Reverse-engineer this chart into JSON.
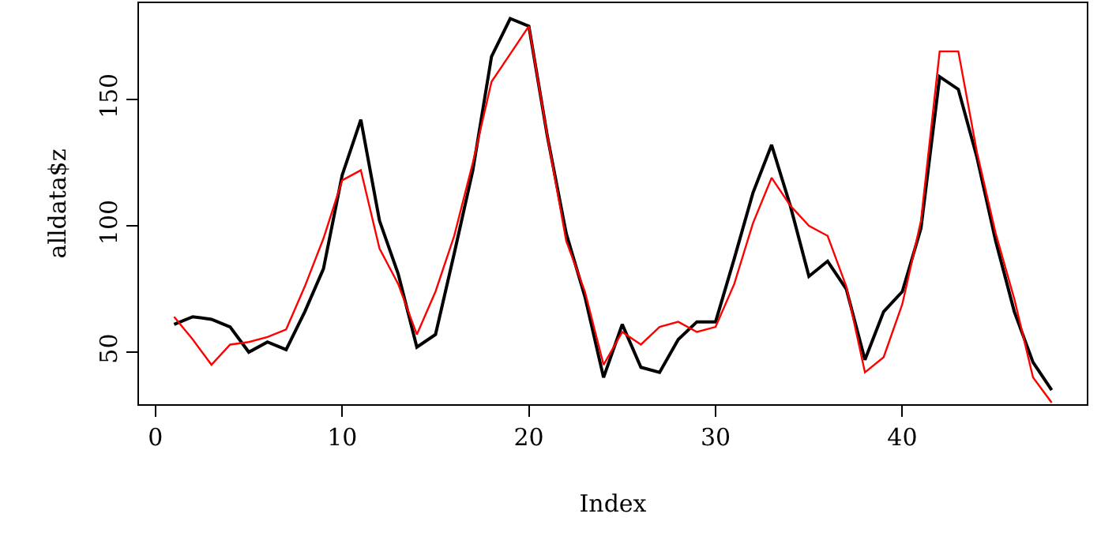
{
  "chart_data": {
    "type": "line",
    "xlabel": "Index",
    "ylabel": "alldata$z",
    "x": [
      1,
      2,
      3,
      4,
      5,
      6,
      7,
      8,
      9,
      10,
      11,
      12,
      13,
      14,
      15,
      16,
      17,
      18,
      19,
      20,
      21,
      22,
      23,
      24,
      25,
      26,
      27,
      28,
      29,
      30,
      31,
      32,
      33,
      34,
      35,
      36,
      37,
      38,
      39,
      40,
      41,
      42,
      43,
      44,
      45,
      46,
      47,
      48
    ],
    "series": [
      {
        "color": "#000000",
        "values": [
          61,
          64,
          63,
          60,
          50,
          54,
          51,
          66,
          83,
          120,
          142,
          102,
          81,
          52,
          57,
          89,
          122,
          167,
          182,
          179,
          135,
          97,
          72,
          40,
          61,
          44,
          42,
          55,
          62,
          62,
          87,
          113,
          132,
          108,
          80,
          86,
          75,
          47,
          66,
          74,
          99,
          159,
          154,
          127,
          94,
          66,
          46,
          35
        ]
      },
      {
        "color": "#ff0000",
        "values": [
          64,
          55,
          45,
          53,
          54,
          56,
          59,
          76,
          95,
          118,
          122,
          91,
          77,
          57,
          74,
          96,
          125,
          157,
          168,
          179,
          135,
          94,
          74,
          45,
          58,
          53,
          60,
          62,
          58,
          60,
          77,
          101,
          119,
          108,
          100,
          96,
          76,
          42,
          48,
          69,
          102,
          169,
          169,
          129,
          97,
          71,
          40,
          30
        ]
      }
    ],
    "xlim": [
      -0.88,
      49.88
    ],
    "xticks": [
      0,
      10,
      20,
      30,
      40
    ],
    "ylim": [
      29.4,
      188.1
    ],
    "yticks": [
      50,
      100,
      150
    ],
    "grid": false,
    "marker": "none",
    "line_style": "solid"
  }
}
